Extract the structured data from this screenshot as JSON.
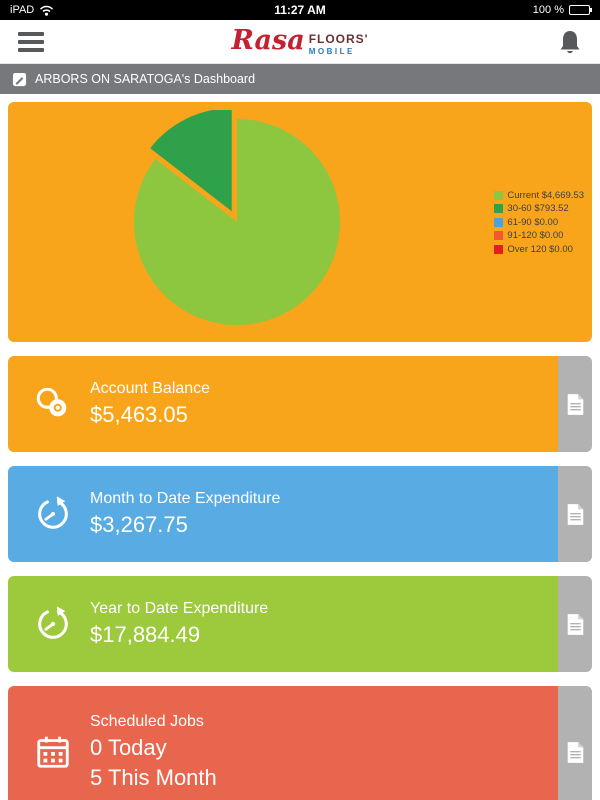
{
  "status_bar": {
    "carrier": "iPAD",
    "time": "11:27 AM",
    "battery": "100 %"
  },
  "header": {
    "logo_primary": "Rasa",
    "logo_secondary": "FLOORS'",
    "logo_tertiary": "MOBILE"
  },
  "breadcrumb": {
    "title": "ARBORS ON SARATOGA's Dashboard"
  },
  "chart_data": {
    "type": "pie",
    "title": "",
    "legend_position": "right",
    "start_angle_deg": -90,
    "direction": "clockwise",
    "card_background": "#f9a51b",
    "slices": [
      {
        "label": "Current",
        "value": 4669.53,
        "legend": "Current $4,669.53",
        "color": "#8dc63f",
        "exploded": false
      },
      {
        "label": "30-60",
        "value": 793.52,
        "legend": "30-60 $793.52",
        "color": "#2fa14b",
        "exploded": true
      },
      {
        "label": "61-90",
        "value": 0,
        "legend": "61-90 $0.00",
        "color": "#4aa3df",
        "exploded": false
      },
      {
        "label": "91-120",
        "value": 0,
        "legend": "91-120 $0.00",
        "color": "#f1582c",
        "exploded": false
      },
      {
        "label": "Over 120",
        "value": 0,
        "legend": "Over 120 $0.00",
        "color": "#e21d25",
        "exploded": false
      }
    ]
  },
  "cards": [
    {
      "title": "Account Balance",
      "value": "$5,463.05",
      "color": "#f9a51b",
      "icon": "coins-icon"
    },
    {
      "title": "Month to Date Expenditure",
      "value": "$3,267.75",
      "color": "#58ace3",
      "icon": "gauge-icon"
    },
    {
      "title": "Year to Date Expenditure",
      "value": "$17,884.49",
      "color": "#9dc93c",
      "icon": "gauge-icon"
    },
    {
      "title": "Scheduled Jobs",
      "value": "0 Today",
      "value2": "5 This Month",
      "color": "#e8654e",
      "icon": "calendar-icon"
    }
  ]
}
